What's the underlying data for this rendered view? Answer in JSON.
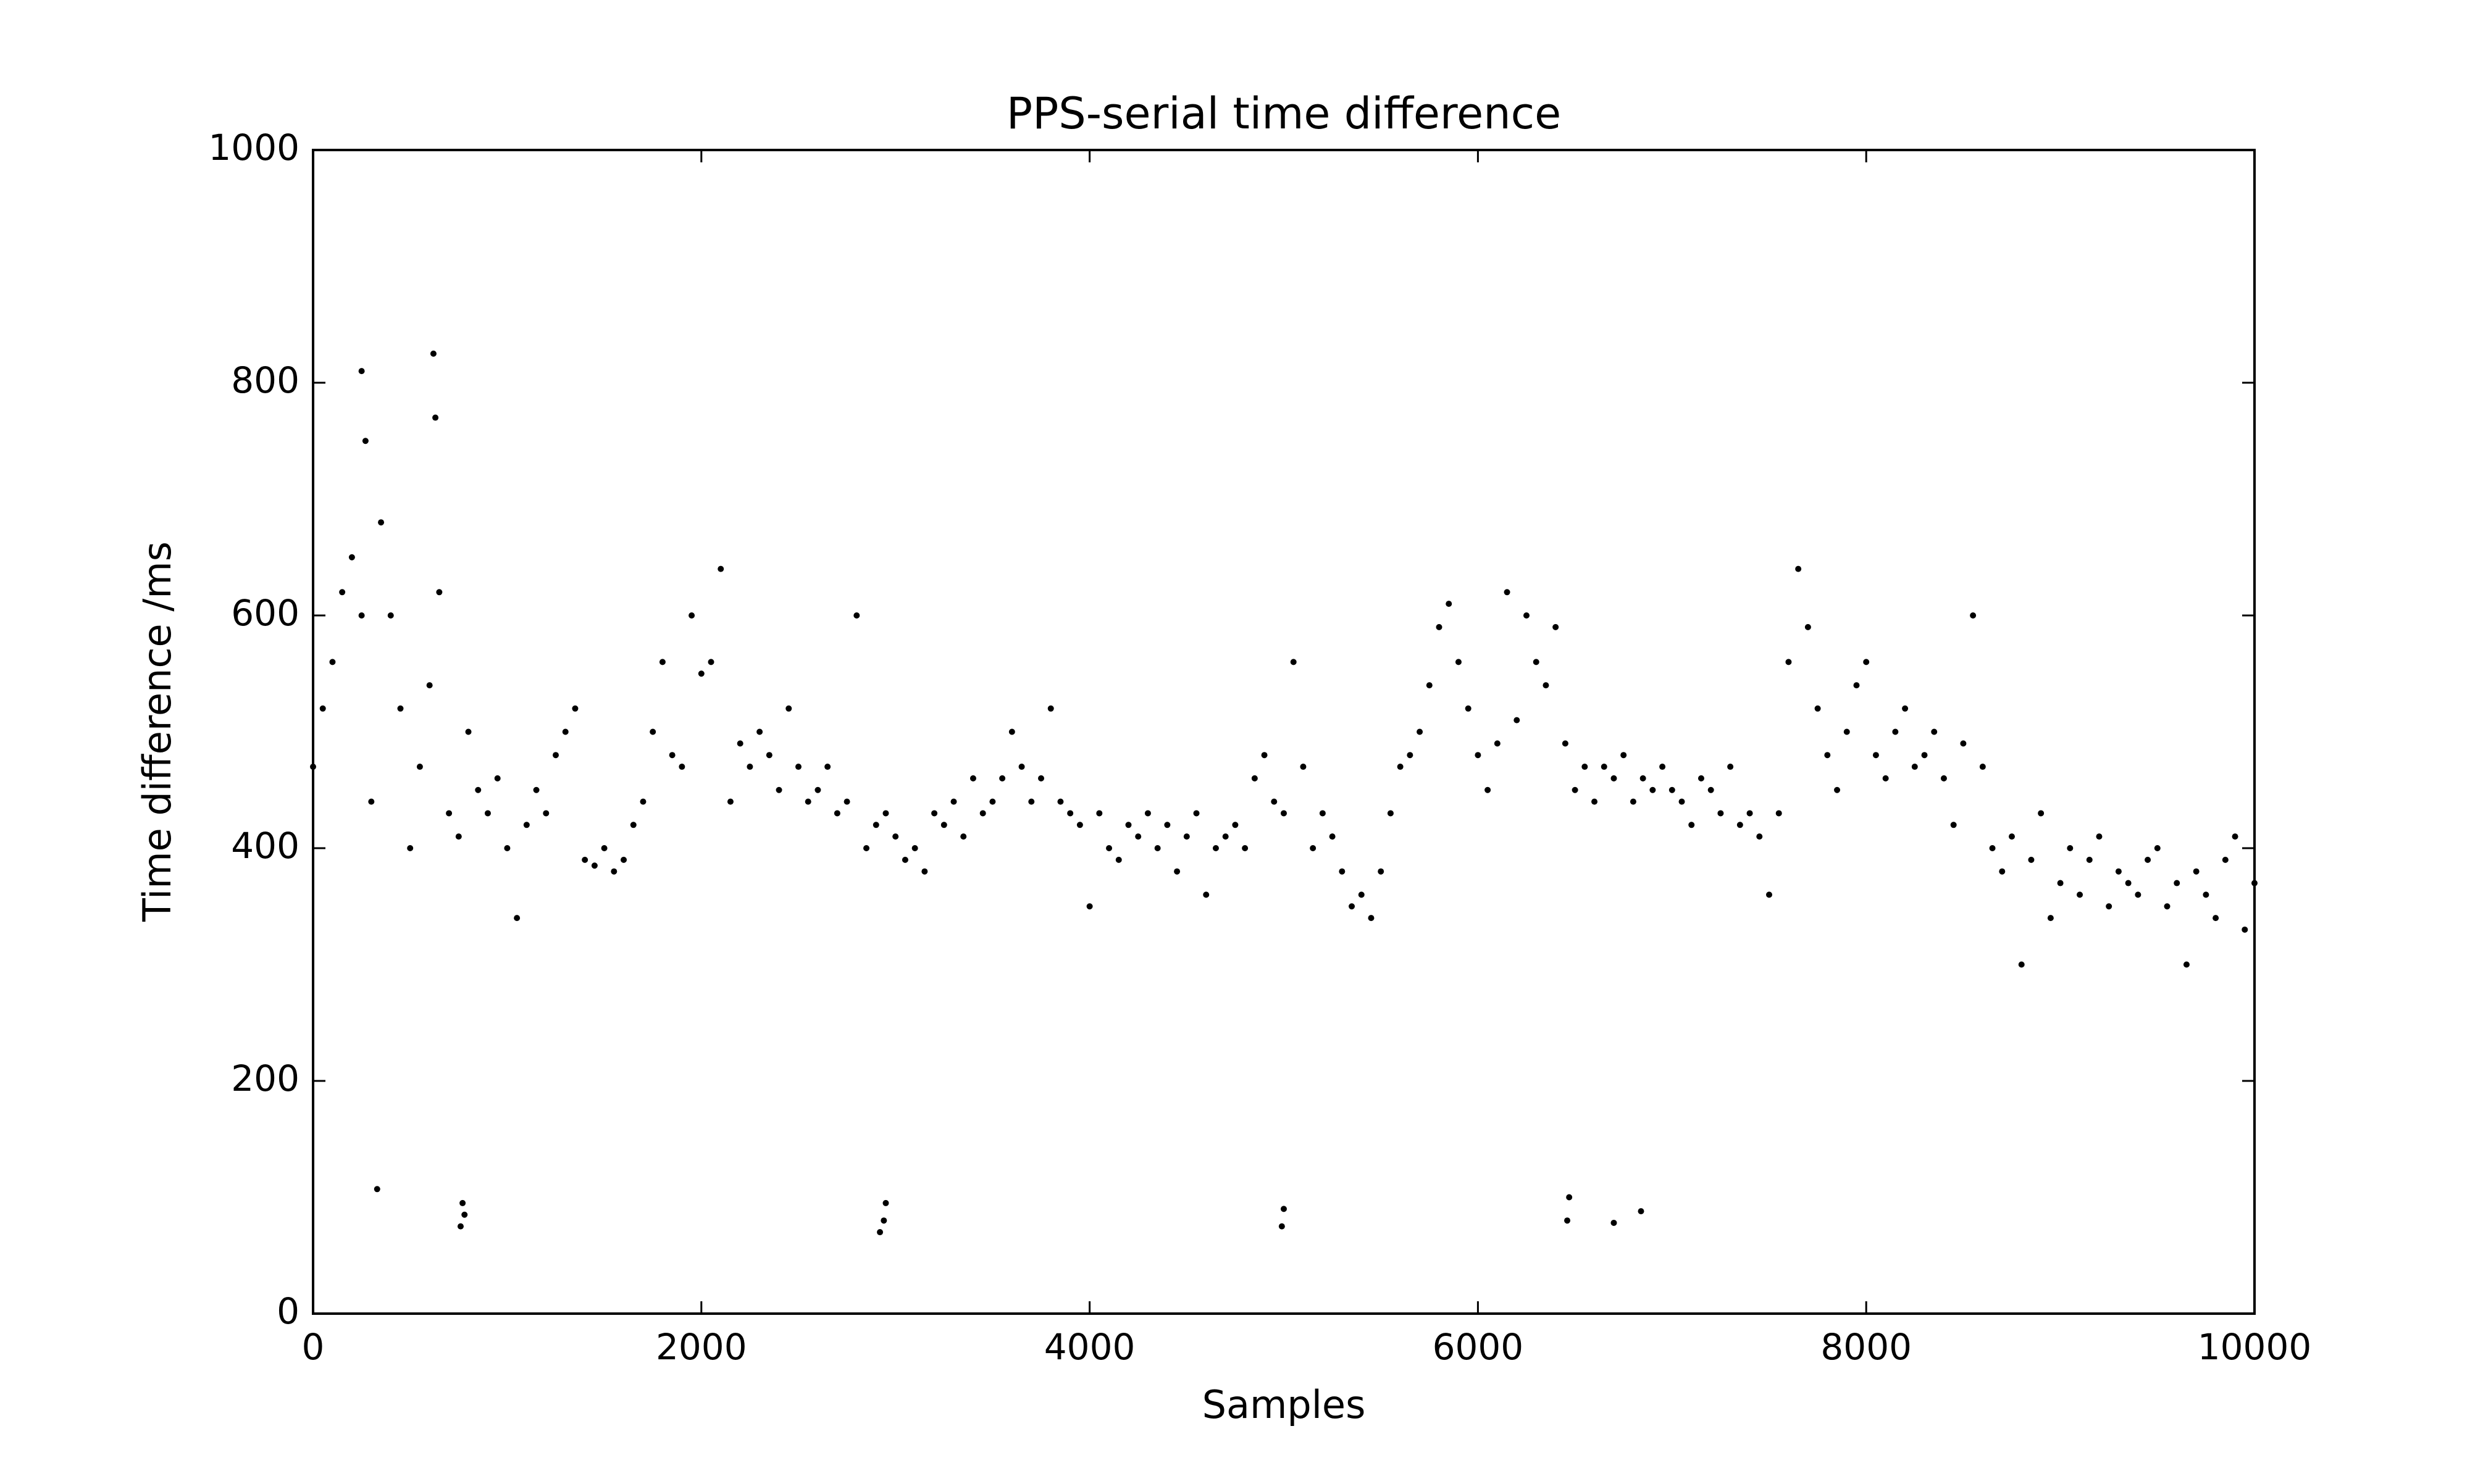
{
  "chart_data": {
    "type": "scatter",
    "title": "PPS-serial time difference",
    "x_label": "Samples",
    "y_label": "Time difference /ms",
    "color": "#000000",
    "xlim": [
      0,
      10000
    ],
    "ylim": [
      0,
      1000
    ],
    "xticks": [
      0,
      2000,
      4000,
      6000,
      8000,
      10000
    ],
    "yticks": [
      0,
      200,
      400,
      600,
      800,
      1000
    ],
    "x": [
      0,
      50,
      100,
      150,
      200,
      250,
      300,
      350,
      400,
      450,
      500,
      550,
      600,
      650,
      700,
      750,
      800,
      850,
      900,
      950,
      1000,
      1050,
      1100,
      1150,
      1200,
      1250,
      1300,
      1350,
      1400,
      1450,
      1500,
      1550,
      1600,
      1650,
      1700,
      1750,
      1800,
      1850,
      1900,
      1950,
      2000,
      2050,
      2100,
      2150,
      2200,
      2250,
      2300,
      2350,
      2400,
      2450,
      2500,
      2550,
      2600,
      2650,
      2700,
      2750,
      2800,
      2850,
      2900,
      2950,
      3000,
      3050,
      3100,
      3150,
      3200,
      3250,
      3300,
      3350,
      3400,
      3450,
      3500,
      3550,
      3600,
      3650,
      3700,
      3750,
      3800,
      3850,
      3900,
      3950,
      4000,
      4050,
      4100,
      4150,
      4200,
      4250,
      4300,
      4350,
      4400,
      4450,
      4500,
      4550,
      4600,
      4650,
      4700,
      4750,
      4800,
      4850,
      4900,
      4950,
      5000,
      5050,
      5100,
      5150,
      5200,
      5250,
      5300,
      5350,
      5400,
      5450,
      5500,
      5550,
      5600,
      5650,
      5700,
      5750,
      5800,
      5850,
      5900,
      5950,
      6000,
      6050,
      6100,
      6150,
      6200,
      6250,
      6300,
      6350,
      6400,
      6450,
      6500,
      6550,
      6600,
      6650,
      6700,
      6750,
      6800,
      6850,
      6900,
      6950,
      7000,
      7050,
      7100,
      7150,
      7200,
      7250,
      7300,
      7350,
      7400,
      7450,
      7500,
      7550,
      7600,
      7650,
      7700,
      7750,
      7800,
      7850,
      7900,
      7950,
      8000,
      8050,
      8100,
      8150,
      8200,
      8250,
      8300,
      8350,
      8400,
      8450,
      8500,
      8550,
      8600,
      8650,
      8700,
      8750,
      8800,
      8850,
      8900,
      8950,
      9000,
      9050,
      9100,
      9150,
      9200,
      9250,
      9300,
      9350,
      9400,
      9450,
      9500,
      9550,
      9600,
      9650,
      9700,
      9750,
      9800,
      9850,
      9900,
      9950,
      10000,
      250,
      270,
      620,
      630,
      330,
      760,
      770,
      780,
      2920,
      2940,
      2950,
      4990,
      5000,
      6460,
      6470,
      6700,
      6840
    ],
    "values": [
      470,
      520,
      560,
      620,
      650,
      600,
      440,
      680,
      600,
      520,
      400,
      470,
      540,
      620,
      430,
      410,
      500,
      450,
      430,
      460,
      400,
      340,
      420,
      450,
      430,
      480,
      500,
      520,
      390,
      385,
      400,
      380,
      390,
      420,
      440,
      500,
      560,
      480,
      470,
      600,
      550,
      560,
      640,
      440,
      490,
      470,
      500,
      480,
      450,
      520,
      470,
      440,
      450,
      470,
      430,
      440,
      600,
      400,
      420,
      430,
      410,
      390,
      400,
      380,
      430,
      420,
      440,
      410,
      460,
      430,
      440,
      460,
      500,
      470,
      440,
      460,
      520,
      440,
      430,
      420,
      350,
      430,
      400,
      390,
      420,
      410,
      430,
      400,
      420,
      380,
      410,
      430,
      360,
      400,
      410,
      420,
      400,
      460,
      480,
      440,
      430,
      560,
      470,
      400,
      430,
      410,
      380,
      350,
      360,
      340,
      380,
      430,
      470,
      480,
      500,
      540,
      590,
      610,
      560,
      520,
      480,
      450,
      490,
      620,
      510,
      600,
      560,
      540,
      590,
      490,
      450,
      470,
      440,
      470,
      460,
      480,
      440,
      460,
      450,
      470,
      450,
      440,
      420,
      460,
      450,
      430,
      470,
      420,
      430,
      410,
      360,
      430,
      560,
      640,
      590,
      520,
      480,
      450,
      500,
      540,
      560,
      480,
      460,
      500,
      520,
      470,
      480,
      500,
      460,
      420,
      490,
      600,
      470,
      400,
      380,
      410,
      300,
      390,
      430,
      340,
      370,
      400,
      360,
      390,
      410,
      350,
      380,
      370,
      360,
      390,
      400,
      350,
      370,
      300,
      380,
      360,
      340,
      390,
      410,
      330,
      370,
      810,
      750,
      825,
      770,
      107,
      75,
      95,
      85,
      70,
      80,
      95,
      75,
      90,
      80,
      100,
      78,
      88
    ]
  }
}
